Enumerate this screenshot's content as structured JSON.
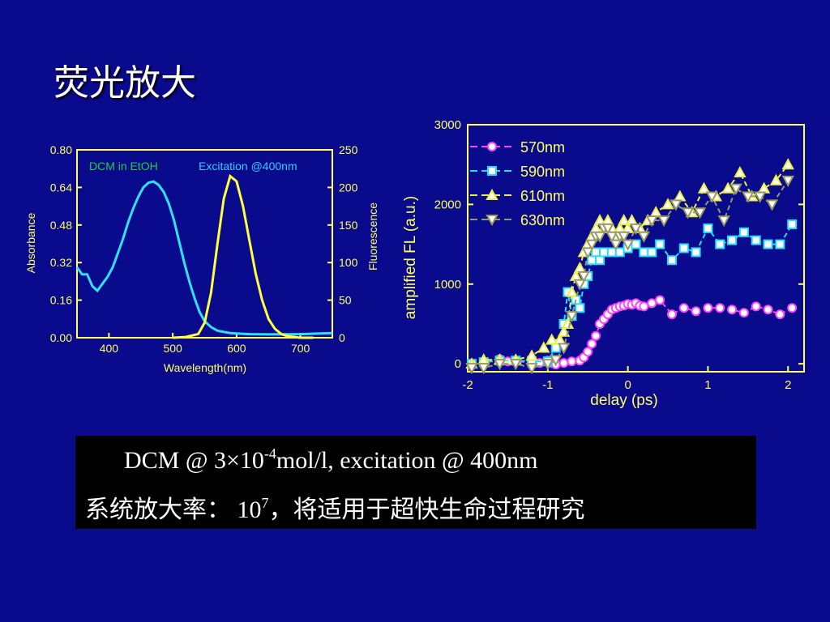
{
  "slide": {
    "title": "荧光放大",
    "caption": {
      "line1": {
        "pre": "DCM @ 3×10",
        "sup": "-4",
        "post": "mol/l, excitation @ 400nm"
      },
      "line2": {
        "pre": "系统放大率： 10",
        "sup": "7",
        "post": "，将适用于超快生命过程研究"
      }
    }
  },
  "colors": {
    "background": "#0a0a8c",
    "axis": "#ffff60",
    "left_tick_labels": "#ffff60",
    "right_tick_labels": "#ffff60",
    "absorbance": "#33e0ff",
    "fluorescence": "#ffff40",
    "s570": "#ff44ff",
    "s590": "#22ddff",
    "s610": "#eeee44",
    "s630": "#999966"
  },
  "chart_data": [
    {
      "type": "line",
      "annotations": [
        {
          "text": "DCM in EtOH",
          "color": "#22cc44"
        },
        {
          "text": "Excitation @400nm",
          "color": "#33ccff"
        }
      ],
      "xlabel": "Wavelength(nm)",
      "ylabel_left": "Absorbance",
      "ylabel_right": "Fluorescence",
      "xlim": [
        350,
        750
      ],
      "ylim_left": [
        0,
        0.8
      ],
      "ylim_right": [
        0,
        250
      ],
      "xticks": [
        400,
        500,
        600,
        700
      ],
      "yticks_left": [
        "0.00",
        "0.16",
        "0.32",
        "0.48",
        "0.64",
        "0.80"
      ],
      "yticks_right": [
        "0",
        "50",
        "100",
        "150",
        "200",
        "250"
      ],
      "series": [
        {
          "name": "Absorbance",
          "axis": "left",
          "x": [
            350,
            358,
            366,
            374,
            382,
            390,
            398,
            406,
            414,
            422,
            430,
            438,
            446,
            454,
            462,
            470,
            478,
            486,
            494,
            502,
            510,
            518,
            526,
            534,
            542,
            550,
            560,
            570,
            580,
            590,
            600,
            620,
            650,
            700,
            750
          ],
          "y": [
            0.3,
            0.27,
            0.27,
            0.22,
            0.2,
            0.23,
            0.26,
            0.3,
            0.36,
            0.42,
            0.49,
            0.55,
            0.6,
            0.64,
            0.66,
            0.665,
            0.65,
            0.62,
            0.57,
            0.5,
            0.41,
            0.32,
            0.24,
            0.17,
            0.11,
            0.07,
            0.045,
            0.03,
            0.025,
            0.02,
            0.018,
            0.015,
            0.014,
            0.015,
            0.02
          ]
        },
        {
          "name": "Fluorescence",
          "axis": "right",
          "x": [
            500,
            520,
            540,
            550,
            560,
            570,
            580,
            590,
            600,
            610,
            620,
            630,
            640,
            650,
            660,
            670,
            680,
            700,
            720
          ],
          "y": [
            0,
            1,
            5,
            20,
            60,
            125,
            185,
            215,
            208,
            175,
            130,
            85,
            50,
            25,
            12,
            5,
            2,
            0,
            0
          ]
        }
      ]
    },
    {
      "type": "line",
      "xlabel": "delay (ps)",
      "ylabel": "amplified FL (a.u.)",
      "xlim": [
        -2.0,
        2.2
      ],
      "ylim": [
        -100,
        3000
      ],
      "xticks": [
        -2,
        -1,
        0,
        1,
        2
      ],
      "yticks": [
        0,
        1000,
        2000,
        3000
      ],
      "legend_position": "top-left",
      "series": [
        {
          "name": "570nm",
          "marker": "circle",
          "x": [
            -1.95,
            -1.8,
            -1.6,
            -1.5,
            -1.2,
            -1.1,
            -1.0,
            -0.95,
            -0.9,
            -0.8,
            -0.7,
            -0.6,
            -0.55,
            -0.5,
            -0.45,
            -0.4,
            -0.35,
            -0.3,
            -0.25,
            -0.2,
            -0.15,
            -0.1,
            -0.05,
            0.0,
            0.05,
            0.1,
            0.15,
            0.2,
            0.3,
            0.4,
            0.55,
            0.7,
            0.85,
            1.0,
            1.15,
            1.3,
            1.45,
            1.6,
            1.75,
            1.9,
            2.05
          ],
          "y": [
            0,
            20,
            60,
            30,
            20,
            10,
            40,
            10,
            -10,
            10,
            30,
            40,
            80,
            150,
            250,
            350,
            500,
            560,
            620,
            680,
            700,
            720,
            730,
            750,
            740,
            760,
            730,
            720,
            760,
            800,
            620,
            700,
            660,
            700,
            700,
            680,
            640,
            720,
            680,
            620,
            700
          ]
        },
        {
          "name": "590nm",
          "marker": "square",
          "x": [
            -1.95,
            -1.8,
            -1.6,
            -1.4,
            -1.2,
            -1.0,
            -0.9,
            -0.8,
            -0.75,
            -0.7,
            -0.65,
            -0.6,
            -0.55,
            -0.5,
            -0.45,
            -0.4,
            -0.35,
            -0.3,
            -0.2,
            -0.1,
            0.0,
            0.1,
            0.2,
            0.3,
            0.4,
            0.55,
            0.7,
            0.85,
            1.0,
            1.15,
            1.3,
            1.45,
            1.6,
            1.75,
            1.9,
            2.05
          ],
          "y": [
            0,
            20,
            40,
            40,
            30,
            30,
            200,
            500,
            900,
            600,
            800,
            700,
            1000,
            1100,
            1300,
            1400,
            1300,
            1400,
            1400,
            1400,
            1450,
            1500,
            1400,
            1400,
            1500,
            1300,
            1450,
            1400,
            1700,
            1500,
            1550,
            1650,
            1550,
            1500,
            1500,
            1750
          ]
        },
        {
          "name": "610nm",
          "marker": "triangle-up",
          "x": [
            -1.95,
            -1.8,
            -1.6,
            -1.4,
            -1.2,
            -1.05,
            -0.95,
            -0.85,
            -0.8,
            -0.75,
            -0.7,
            -0.65,
            -0.6,
            -0.55,
            -0.5,
            -0.45,
            -0.4,
            -0.35,
            -0.3,
            -0.25,
            -0.2,
            -0.15,
            -0.1,
            -0.05,
            0.0,
            0.05,
            0.15,
            0.25,
            0.35,
            0.5,
            0.65,
            0.8,
            0.95,
            1.1,
            1.25,
            1.4,
            1.55,
            1.7,
            1.85,
            2.0
          ],
          "y": [
            0,
            50,
            50,
            50,
            100,
            200,
            300,
            300,
            400,
            500,
            900,
            1100,
            1200,
            1400,
            1500,
            1600,
            1700,
            1800,
            1700,
            1800,
            1700,
            1600,
            1700,
            1800,
            1700,
            1800,
            1700,
            1800,
            1900,
            2000,
            2100,
            1900,
            2200,
            2100,
            2200,
            2400,
            2100,
            2200,
            2300,
            2500
          ]
        },
        {
          "name": "630nm",
          "marker": "triangle-down",
          "x": [
            -1.95,
            -1.8,
            -1.6,
            -1.4,
            -1.2,
            -1.0,
            -0.9,
            -0.8,
            -0.7,
            -0.6,
            -0.55,
            -0.5,
            -0.45,
            -0.4,
            -0.35,
            -0.3,
            -0.25,
            -0.2,
            -0.15,
            -0.1,
            -0.05,
            0.0,
            0.1,
            0.2,
            0.3,
            0.45,
            0.6,
            0.75,
            0.9,
            1.05,
            1.2,
            1.35,
            1.5,
            1.65,
            1.8,
            2.0
          ],
          "y": [
            -50,
            -50,
            0,
            0,
            -50,
            0,
            50,
            200,
            600,
            1000,
            1100,
            1400,
            1500,
            1600,
            1600,
            1700,
            1700,
            1600,
            1500,
            1600,
            1600,
            1500,
            1700,
            1600,
            1800,
            1800,
            2000,
            1900,
            1900,
            2100,
            1800,
            2200,
            2100,
            2100,
            2000,
            2300
          ]
        }
      ]
    }
  ]
}
